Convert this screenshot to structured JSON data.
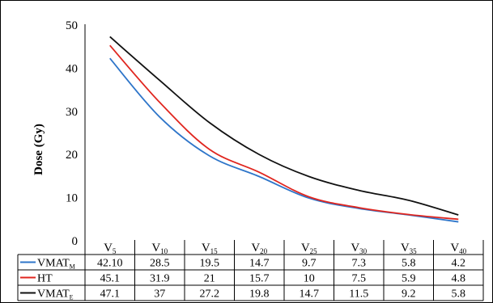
{
  "chart_data": {
    "type": "line",
    "ylabel": "Dose (Gy)",
    "ylim": [
      0,
      50
    ],
    "yticks": [
      "0",
      "10",
      "20",
      "30",
      "40",
      "50"
    ],
    "categories": [
      {
        "base": "V",
        "sub": "5"
      },
      {
        "base": "V",
        "sub": "10"
      },
      {
        "base": "V",
        "sub": "15"
      },
      {
        "base": "V",
        "sub": "20"
      },
      {
        "base": "V",
        "sub": "25"
      },
      {
        "base": "V",
        "sub": "30"
      },
      {
        "base": "V",
        "sub": "35"
      },
      {
        "base": "V",
        "sub": "40"
      }
    ],
    "series": [
      {
        "name_base": "VMAT",
        "name_sub": "M",
        "color": "#2e75c9",
        "values": [
          42.1,
          28.5,
          19.5,
          14.7,
          9.7,
          7.3,
          5.8,
          4.2
        ],
        "labels": [
          "42.10",
          "28.5",
          "19.5",
          "14.7",
          "9.7",
          "7.3",
          "5.8",
          "4.2"
        ]
      },
      {
        "name_base": "HT",
        "name_sub": "",
        "color": "#e0261f",
        "values": [
          45.1,
          31.9,
          21,
          15.7,
          10,
          7.5,
          5.9,
          4.8
        ],
        "labels": [
          "45.1",
          "31.9",
          "21",
          "15.7",
          "10",
          "7.5",
          "5.9",
          "4.8"
        ]
      },
      {
        "name_base": "VMAT",
        "name_sub": "E",
        "color": "#111111",
        "values": [
          47.1,
          37,
          27.2,
          19.8,
          14.7,
          11.5,
          9.2,
          5.8
        ],
        "labels": [
          "47.1",
          "37",
          "27.2",
          "19.8",
          "14.7",
          "11.5",
          "9.2",
          "5.8"
        ]
      }
    ],
    "legend": "table-below",
    "grid": false
  }
}
